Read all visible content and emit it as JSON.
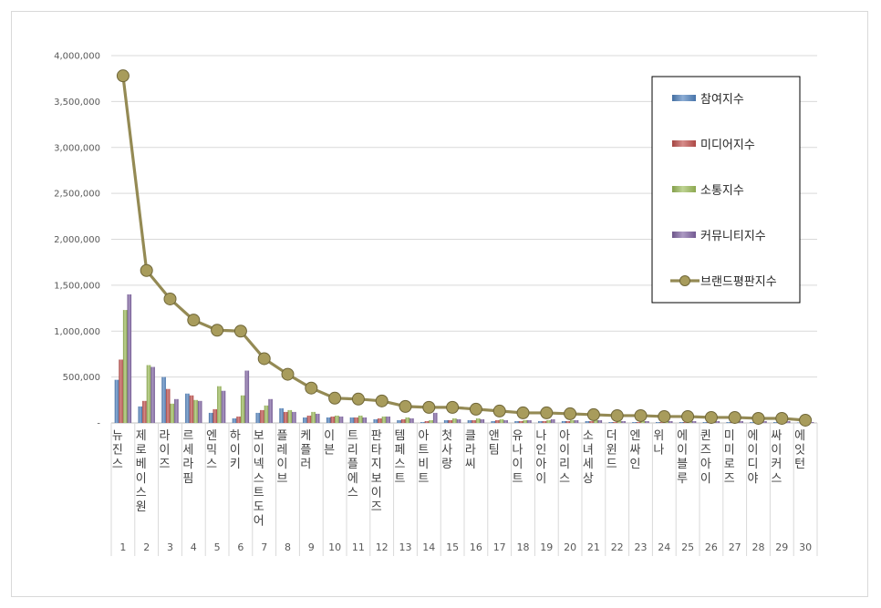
{
  "chart_data": {
    "type": "bar",
    "y_ticks": [
      "4,000,000",
      "3,500,000",
      "3,000,000",
      "2,500,000",
      "2,000,000",
      "1,500,000",
      "1,000,000",
      "500,000",
      "-"
    ],
    "ylim": [
      0,
      4000000
    ],
    "grid": true,
    "legend_position": "top-right",
    "categories": [
      "뉴진스",
      "제로베이스원",
      "라이즈",
      "르세라핌",
      "엔믹스",
      "하이키",
      "보이넥스트도어",
      "플레이브",
      "케플러",
      "이븐",
      "트리플에스",
      "판타지보이즈",
      "템페스트",
      "아트비트",
      "첫사랑",
      "클라씨",
      "앤팀",
      "유나이트",
      "나인아이",
      "아이리스",
      "소녀세상",
      "더윈드",
      "엔싸인",
      "위나",
      "에이블루",
      "퀸즈아이",
      "미미로즈",
      "에이디야",
      "싸이커스",
      "에잇턴"
    ],
    "ranks": [
      "1",
      "2",
      "3",
      "4",
      "5",
      "6",
      "7",
      "8",
      "9",
      "10",
      "11",
      "12",
      "13",
      "14",
      "15",
      "16",
      "17",
      "18",
      "19",
      "20",
      "21",
      "22",
      "23",
      "24",
      "25",
      "26",
      "27",
      "28",
      "29",
      "30"
    ],
    "series": [
      {
        "name": "참여지수",
        "type": "bar",
        "color": "#4f81bd",
        "values": [
          470000,
          180000,
          500000,
          320000,
          110000,
          50000,
          110000,
          160000,
          60000,
          60000,
          60000,
          40000,
          30000,
          10000,
          30000,
          30000,
          20000,
          20000,
          20000,
          20000,
          20000,
          10000,
          10000,
          10000,
          10000,
          10000,
          10000,
          10000,
          10000,
          5000
        ]
      },
      {
        "name": "미디어지수",
        "type": "bar",
        "color": "#c0504d",
        "values": [
          690000,
          240000,
          370000,
          300000,
          150000,
          70000,
          140000,
          120000,
          80000,
          70000,
          60000,
          50000,
          40000,
          20000,
          30000,
          30000,
          30000,
          20000,
          20000,
          20000,
          20000,
          10000,
          10000,
          10000,
          10000,
          10000,
          10000,
          10000,
          10000,
          5000
        ]
      },
      {
        "name": "소통지수",
        "type": "bar",
        "color": "#9bbb59",
        "values": [
          1230000,
          630000,
          210000,
          250000,
          400000,
          300000,
          190000,
          140000,
          120000,
          80000,
          80000,
          70000,
          60000,
          30000,
          50000,
          50000,
          40000,
          30000,
          30000,
          30000,
          30000,
          20000,
          20000,
          20000,
          20000,
          20000,
          20000,
          20000,
          20000,
          10000
        ]
      },
      {
        "name": "커뮤니티지수",
        "type": "bar",
        "color": "#8064a2",
        "values": [
          1400000,
          610000,
          260000,
          240000,
          350000,
          570000,
          260000,
          120000,
          100000,
          70000,
          60000,
          70000,
          50000,
          110000,
          40000,
          40000,
          30000,
          30000,
          40000,
          30000,
          30000,
          20000,
          20000,
          20000,
          20000,
          20000,
          20000,
          20000,
          20000,
          10000
        ]
      },
      {
        "name": "브랜드평판지수",
        "type": "line",
        "color": "#948a54",
        "values": [
          3780000,
          1660000,
          1350000,
          1120000,
          1010000,
          1000000,
          700000,
          530000,
          380000,
          270000,
          260000,
          240000,
          180000,
          170000,
          170000,
          150000,
          130000,
          110000,
          110000,
          100000,
          90000,
          80000,
          80000,
          70000,
          70000,
          60000,
          60000,
          50000,
          50000,
          30000
        ]
      }
    ]
  }
}
